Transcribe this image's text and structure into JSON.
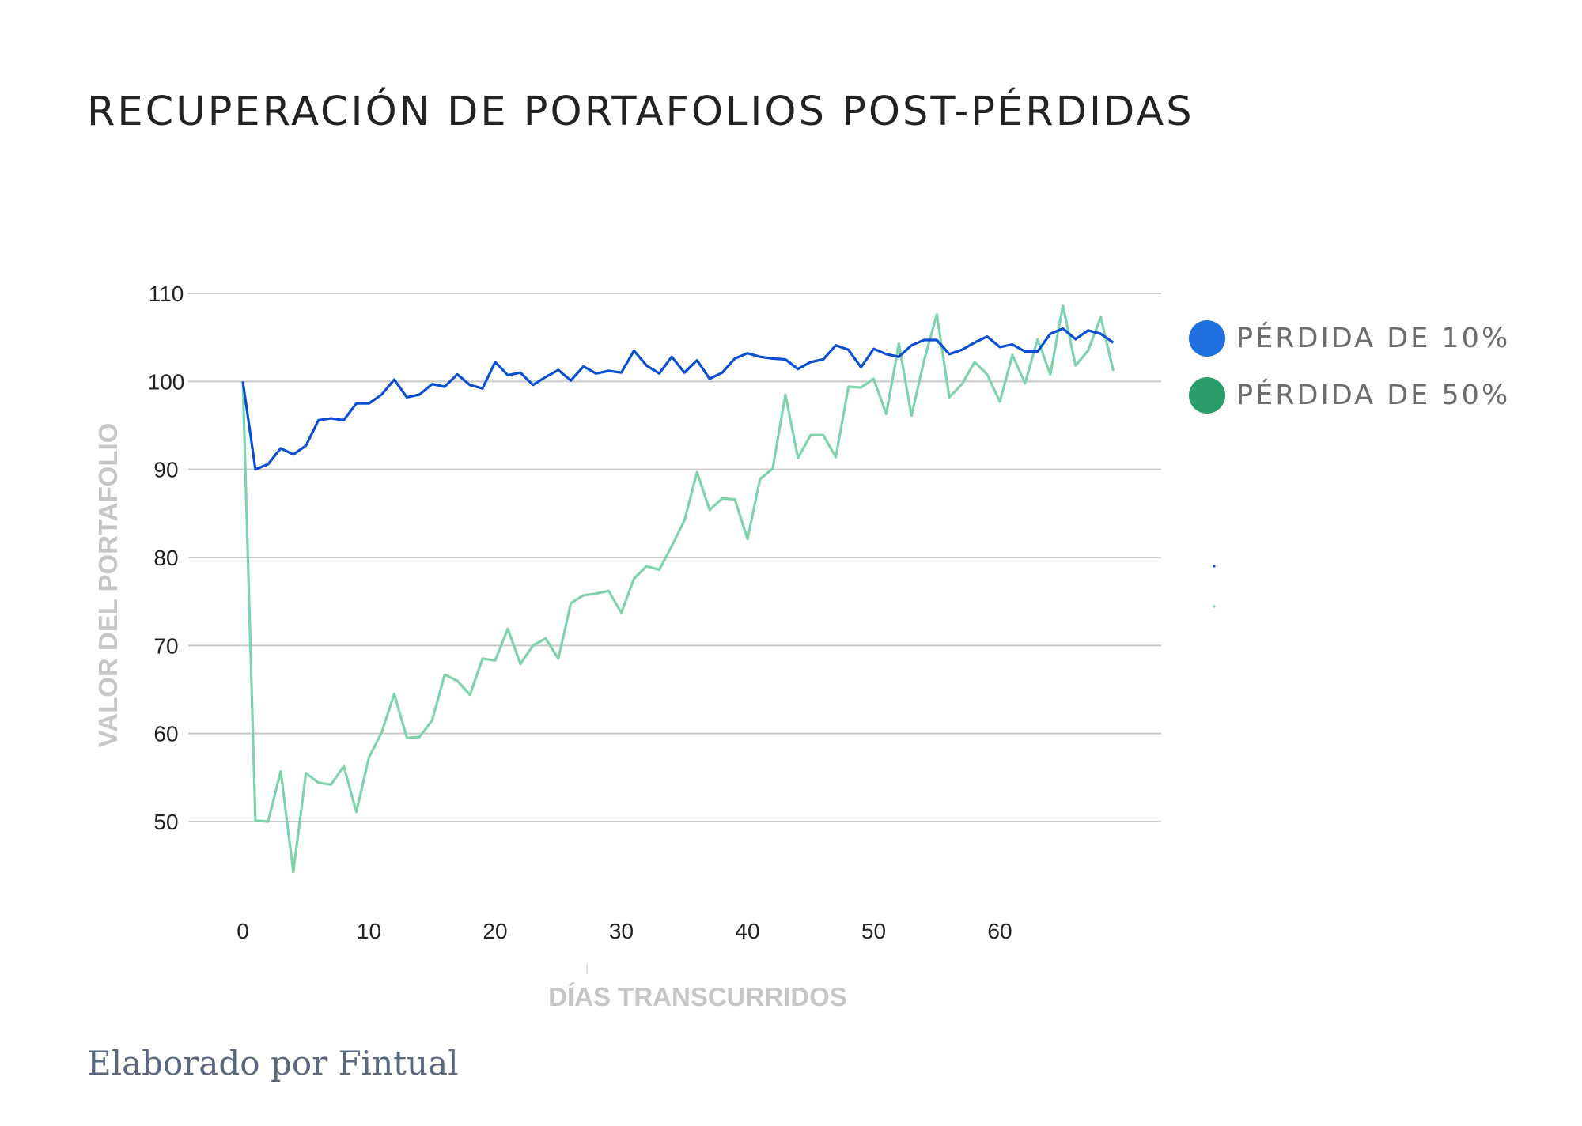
{
  "title": "RECUPERACIÓN DE PORTAFOLIOS POST-PÉRDIDAS",
  "footer": "Elaborado por Fintual",
  "legend": [
    {
      "label": "PÉRDIDA DE 10%",
      "color": "#1f6fe0"
    },
    {
      "label": "PÉRDIDA DE 50%",
      "color": "#2a9d6a"
    }
  ],
  "chart_data": {
    "type": "line",
    "title": "RECUPERACIÓN DE PORTAFOLIOS POST-PÉRDIDAS",
    "xlabel": "DÍAS TRANSCURRIDOS",
    "ylabel": "VALOR DEL PORTAFOLIO",
    "xlim": [
      0,
      72
    ],
    "ylim": [
      40,
      110
    ],
    "xticks": [
      0,
      10,
      20,
      30,
      40,
      50,
      60
    ],
    "yticks": [
      50,
      60,
      70,
      80,
      90,
      100,
      110
    ],
    "grid": true,
    "legend_position": "right",
    "x": [
      0,
      1,
      2,
      3,
      4,
      5,
      6,
      7,
      8,
      9,
      10,
      11,
      12,
      13,
      14,
      15,
      16,
      17,
      18,
      19,
      20,
      21,
      22,
      23,
      24,
      25,
      26,
      27,
      28,
      29,
      30,
      31,
      32,
      33,
      34,
      35,
      36,
      37,
      38,
      39,
      40,
      41,
      42,
      43,
      44,
      45,
      46,
      47,
      48,
      49,
      50,
      51,
      52,
      53,
      54,
      55,
      56,
      57,
      58,
      59,
      60,
      61,
      62,
      63,
      64,
      65,
      66,
      67,
      68,
      69
    ],
    "series": [
      {
        "name": "PÉRDIDA DE 10%",
        "color": "#0b4fd1",
        "values": [
          100,
          90,
          90.6,
          92.4,
          91.7,
          92.7,
          95.6,
          95.8,
          95.6,
          97.5,
          97.5,
          98.5,
          100.2,
          98.2,
          98.5,
          99.7,
          99.4,
          100.8,
          99.6,
          99.2,
          102.2,
          100.7,
          101,
          99.6,
          100.5,
          101.3,
          100.1,
          101.7,
          100.9,
          101.2,
          101,
          103.5,
          101.8,
          100.9,
          102.8,
          101,
          102.4,
          100.3,
          101,
          102.6,
          103.2,
          102.8,
          102.6,
          102.5,
          101.4,
          102.2,
          102.5,
          104.1,
          103.6,
          101.6,
          103.7,
          103.1,
          102.8,
          104.1,
          104.7,
          104.7,
          103.1,
          103.6,
          104.4,
          105.1,
          103.9,
          104.2,
          103.4,
          103.4,
          105.4,
          106,
          104.8,
          105.8,
          105.4,
          104.4
        ]
      },
      {
        "name": "PÉRDIDA DE 50%",
        "color": "#7ed3ad",
        "values": [
          100,
          50.1,
          50,
          55.7,
          44.3,
          55.5,
          54.4,
          54.2,
          56.3,
          51.1,
          57.3,
          60.1,
          64.5,
          59.5,
          59.6,
          61.5,
          66.7,
          66,
          64.4,
          68.5,
          68.3,
          71.9,
          67.9,
          70,
          70.8,
          68.5,
          74.8,
          75.7,
          75.9,
          76.2,
          73.7,
          77.6,
          79,
          78.6,
          81.3,
          84.2,
          89.7,
          85.4,
          86.7,
          86.6,
          82.1,
          88.9,
          90.1,
          98.5,
          91.3,
          93.9,
          93.9,
          91.4,
          99.4,
          99.3,
          100.3,
          96.3,
          104.3,
          96.1,
          102.4,
          107.6,
          98.2,
          99.7,
          102.2,
          100.8,
          97.7,
          103,
          99.8,
          104.8,
          100.8,
          108.6,
          101.8,
          103.5,
          107.3,
          101.2
        ]
      }
    ]
  }
}
